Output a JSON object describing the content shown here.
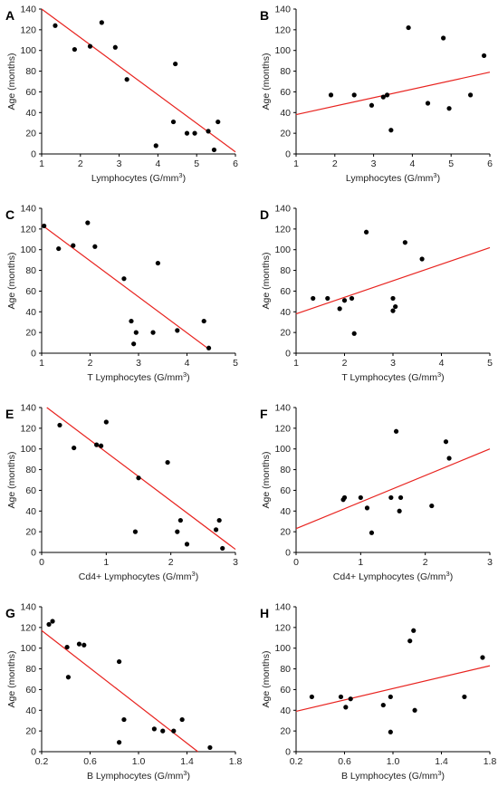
{
  "chart_data": [
    {
      "type": "scatter",
      "panel": "A",
      "xlabel": "Lymphocytes (G/mm",
      "xlabel_sup": "3",
      "xlabel_end": ")",
      "ylabel": "Age (months)",
      "xlim": [
        1,
        6
      ],
      "ylim": [
        0,
        140
      ],
      "xticks": [
        "1",
        "2",
        "3",
        "4",
        "5",
        "6"
      ],
      "yticks": [
        "0",
        "20",
        "40",
        "60",
        "80",
        "100",
        "120",
        "140"
      ],
      "points": [
        [
          1.35,
          124
        ],
        [
          1.85,
          101
        ],
        [
          2.25,
          104
        ],
        [
          2.55,
          127
        ],
        [
          2.9,
          103
        ],
        [
          3.2,
          72
        ],
        [
          3.95,
          8
        ],
        [
          4.4,
          31
        ],
        [
          4.45,
          87
        ],
        [
          4.75,
          20
        ],
        [
          4.95,
          20
        ],
        [
          5.3,
          22
        ],
        [
          5.45,
          4
        ],
        [
          5.55,
          31
        ]
      ],
      "fit": [
        [
          1,
          140
        ],
        [
          6,
          2
        ]
      ],
      "colors": {
        "points": "#000000",
        "fit": "#e8231f"
      }
    },
    {
      "type": "scatter",
      "panel": "B",
      "xlabel": "Lymphocytes (G/mm",
      "xlabel_sup": "3",
      "xlabel_end": ")",
      "ylabel": "Age (months)",
      "xlim": [
        1,
        6
      ],
      "ylim": [
        0,
        140
      ],
      "xticks": [
        "1",
        "2",
        "3",
        "4",
        "5",
        "6"
      ],
      "yticks": [
        "0",
        "20",
        "40",
        "60",
        "80",
        "100",
        "120",
        "140"
      ],
      "points": [
        [
          1.9,
          57
        ],
        [
          2.5,
          57
        ],
        [
          2.95,
          47
        ],
        [
          3.25,
          55
        ],
        [
          3.35,
          57
        ],
        [
          3.45,
          23
        ],
        [
          3.9,
          122
        ],
        [
          4.4,
          49
        ],
        [
          4.8,
          112
        ],
        [
          4.95,
          44
        ],
        [
          5.5,
          57
        ],
        [
          5.85,
          95
        ]
      ],
      "fit": [
        [
          1,
          38
        ],
        [
          6,
          79
        ]
      ],
      "colors": {
        "points": "#000000",
        "fit": "#e8231f"
      }
    },
    {
      "type": "scatter",
      "panel": "C",
      "xlabel": "T Lymphocytes (G/mm",
      "xlabel_sup": "3",
      "xlabel_end": ")",
      "ylabel": "Age (months)",
      "xlim": [
        1,
        5
      ],
      "ylim": [
        0,
        140
      ],
      "xticks": [
        "1",
        "2",
        "3",
        "4",
        "5"
      ],
      "yticks": [
        "0",
        "20",
        "40",
        "60",
        "80",
        "100",
        "120",
        "140"
      ],
      "points": [
        [
          1.05,
          123
        ],
        [
          1.35,
          101
        ],
        [
          1.65,
          104
        ],
        [
          1.95,
          126
        ],
        [
          2.1,
          103
        ],
        [
          2.7,
          72
        ],
        [
          2.85,
          31
        ],
        [
          2.9,
          9
        ],
        [
          2.95,
          20
        ],
        [
          3.3,
          20
        ],
        [
          3.4,
          87
        ],
        [
          3.8,
          22
        ],
        [
          4.35,
          31
        ],
        [
          4.45,
          5
        ]
      ],
      "fit": [
        [
          1,
          124
        ],
        [
          4.45,
          4
        ]
      ],
      "colors": {
        "points": "#000000",
        "fit": "#e8231f"
      }
    },
    {
      "type": "scatter",
      "panel": "D",
      "xlabel": "T Lymphocytes (G/mm",
      "xlabel_sup": "3",
      "xlabel_end": ")",
      "ylabel": "Age (months)",
      "xlim": [
        1,
        5
      ],
      "ylim": [
        0,
        140
      ],
      "xticks": [
        "1",
        "2",
        "3",
        "4",
        "5"
      ],
      "yticks": [
        "0",
        "20",
        "40",
        "60",
        "80",
        "100",
        "120",
        "140"
      ],
      "points": [
        [
          1.35,
          53
        ],
        [
          1.65,
          53
        ],
        [
          1.9,
          43
        ],
        [
          2.0,
          51
        ],
        [
          2.15,
          53
        ],
        [
          2.2,
          19
        ],
        [
          2.45,
          117
        ],
        [
          3.0,
          53
        ],
        [
          3.0,
          41
        ],
        [
          3.05,
          45
        ],
        [
          3.25,
          107
        ],
        [
          3.6,
          91
        ]
      ],
      "fit": [
        [
          1,
          38
        ],
        [
          5,
          102
        ]
      ],
      "colors": {
        "points": "#000000",
        "fit": "#e8231f"
      }
    },
    {
      "type": "scatter",
      "panel": "E",
      "xlabel": "Cd4+ Lymphocytes (G/mm",
      "xlabel_sup": "3",
      "xlabel_end": ")",
      "ylabel": "Age (months)",
      "xlim": [
        0,
        3
      ],
      "ylim": [
        0,
        140
      ],
      "xticks": [
        "0",
        "1",
        "2",
        "3"
      ],
      "yticks": [
        "0",
        "20",
        "40",
        "60",
        "80",
        "100",
        "120",
        "140"
      ],
      "points": [
        [
          0.28,
          123
        ],
        [
          0.5,
          101
        ],
        [
          0.85,
          104
        ],
        [
          0.92,
          103
        ],
        [
          1.0,
          126
        ],
        [
          1.45,
          20
        ],
        [
          1.5,
          72
        ],
        [
          1.95,
          87
        ],
        [
          2.1,
          20
        ],
        [
          2.15,
          31
        ],
        [
          2.25,
          8
        ],
        [
          2.7,
          22
        ],
        [
          2.75,
          31
        ],
        [
          2.8,
          4
        ]
      ],
      "fit": [
        [
          0.08,
          140
        ],
        [
          3,
          3
        ]
      ],
      "colors": {
        "points": "#000000",
        "fit": "#e8231f"
      }
    },
    {
      "type": "scatter",
      "panel": "F",
      "xlabel": "Cd4+ Lymphocytes (G/mm",
      "xlabel_sup": "3",
      "xlabel_end": ")",
      "ylabel": "Age (months)",
      "xlim": [
        0,
        3
      ],
      "ylim": [
        0,
        140
      ],
      "xticks": [
        "0",
        "1",
        "2",
        "3"
      ],
      "yticks": [
        "0",
        "20",
        "40",
        "60",
        "80",
        "100",
        "120",
        "140"
      ],
      "points": [
        [
          0.73,
          51
        ],
        [
          0.75,
          53
        ],
        [
          1.0,
          53
        ],
        [
          1.1,
          43
        ],
        [
          1.17,
          19
        ],
        [
          1.47,
          53
        ],
        [
          1.55,
          117
        ],
        [
          1.6,
          40
        ],
        [
          1.62,
          53
        ],
        [
          2.1,
          45
        ],
        [
          2.32,
          107
        ],
        [
          2.37,
          91
        ]
      ],
      "fit": [
        [
          0,
          23
        ],
        [
          3,
          100
        ]
      ],
      "colors": {
        "points": "#000000",
        "fit": "#e8231f"
      }
    },
    {
      "type": "scatter",
      "panel": "G",
      "xlabel": "B Lymphocytes (G/mm",
      "xlabel_sup": "3",
      "xlabel_end": ")",
      "ylabel": "Age (months)",
      "xlim": [
        0.2,
        1.8
      ],
      "ylim": [
        0,
        140
      ],
      "xticks": [
        "0.2",
        "0.6",
        "1.0",
        "1.4",
        "1.8"
      ],
      "yticks": [
        "0",
        "20",
        "40",
        "60",
        "80",
        "100",
        "120",
        "140"
      ],
      "points": [
        [
          0.26,
          123
        ],
        [
          0.29,
          126
        ],
        [
          0.41,
          101
        ],
        [
          0.42,
          72
        ],
        [
          0.51,
          104
        ],
        [
          0.55,
          103
        ],
        [
          0.84,
          87
        ],
        [
          0.84,
          9
        ],
        [
          0.88,
          31
        ],
        [
          1.13,
          22
        ],
        [
          1.2,
          20
        ],
        [
          1.29,
          20
        ],
        [
          1.36,
          31
        ],
        [
          1.59,
          4
        ]
      ],
      "fit": [
        [
          0.2,
          117
        ],
        [
          1.49,
          0
        ]
      ],
      "colors": {
        "points": "#000000",
        "fit": "#e8231f"
      }
    },
    {
      "type": "scatter",
      "panel": "H",
      "xlabel": "B Lymphocytes (G/mm",
      "xlabel_sup": "3",
      "xlabel_end": ")",
      "ylabel": "Age (months)",
      "xlim": [
        0.2,
        1.8
      ],
      "ylim": [
        0,
        140
      ],
      "xticks": [
        "0.2",
        "0.6",
        "1.0",
        "1.4",
        "1.8"
      ],
      "yticks": [
        "0",
        "20",
        "40",
        "60",
        "80",
        "100",
        "120",
        "140"
      ],
      "points": [
        [
          0.33,
          53
        ],
        [
          0.57,
          53
        ],
        [
          0.61,
          43
        ],
        [
          0.65,
          51
        ],
        [
          0.92,
          45
        ],
        [
          0.98,
          53
        ],
        [
          0.98,
          19
        ],
        [
          1.14,
          107
        ],
        [
          1.17,
          117
        ],
        [
          1.18,
          40
        ],
        [
          1.59,
          53
        ],
        [
          1.74,
          91
        ]
      ],
      "fit": [
        [
          0.2,
          39
        ],
        [
          1.8,
          83
        ]
      ],
      "colors": {
        "points": "#000000",
        "fit": "#e8231f"
      }
    }
  ]
}
